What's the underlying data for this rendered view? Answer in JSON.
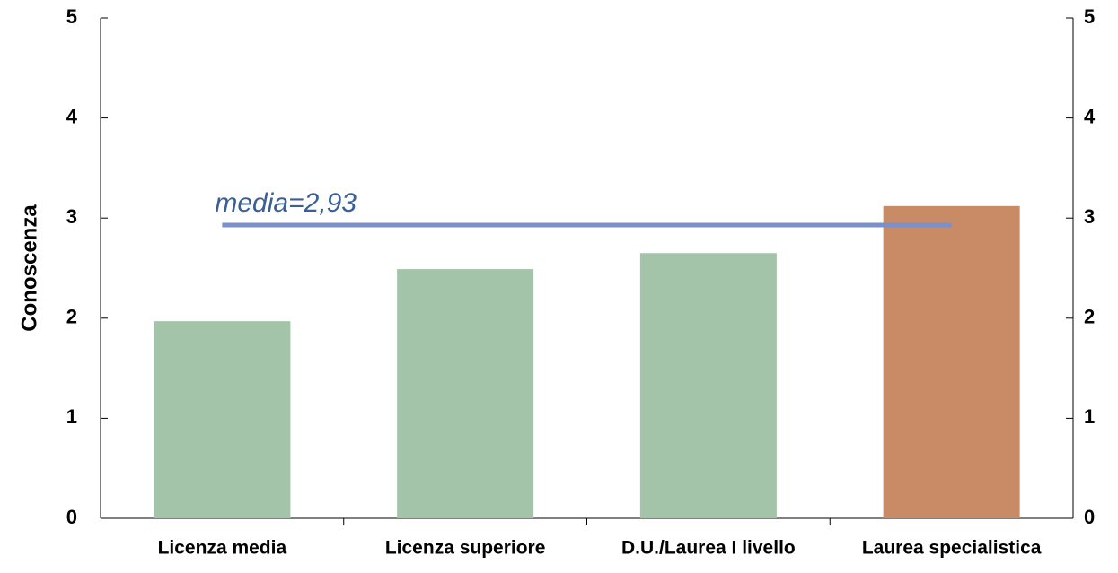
{
  "chart_data": {
    "type": "bar",
    "y_label": "Conoscenza",
    "categories": [
      "Licenza media",
      "Licenza superiore",
      "D.U./Laurea I livello",
      "Laurea specialistica"
    ],
    "values": [
      1.97,
      2.49,
      2.65,
      3.12
    ],
    "colors": [
      "#a3c4a8",
      "#a3c4a8",
      "#a3c4a8",
      "#c98b65"
    ],
    "ylim": [
      0,
      5
    ],
    "yticks": [
      0,
      1,
      2,
      3,
      4,
      5
    ],
    "y2lim": [
      0,
      5
    ],
    "y2ticks": [
      0,
      1,
      2,
      3,
      4,
      5
    ],
    "mean": {
      "value": 2.93,
      "label": "media=2,93",
      "color": "#7b8fc8",
      "label_color": "#3a5f96"
    },
    "grid": false
  }
}
